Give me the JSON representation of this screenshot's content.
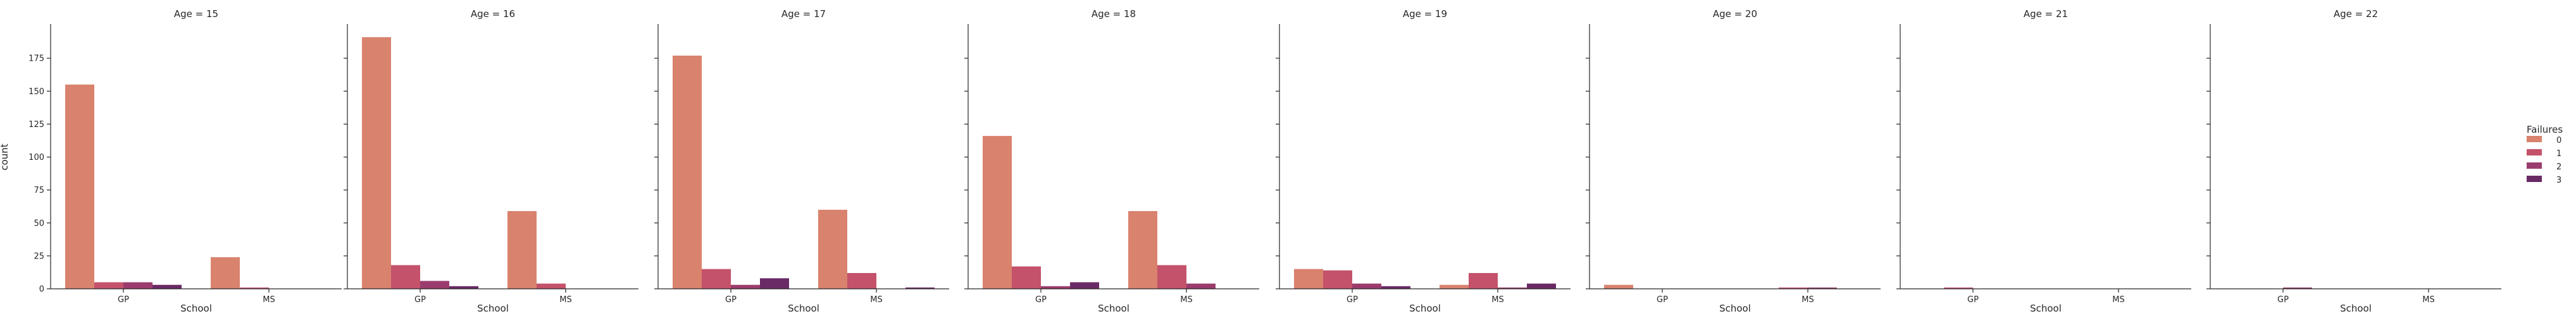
{
  "chart_data": {
    "type": "bar",
    "facet_label": "Age",
    "panel_titles": [
      "Age = 15",
      "Age = 16",
      "Age = 17",
      "Age = 18",
      "Age = 19",
      "Age = 20",
      "Age = 21",
      "Age = 22"
    ],
    "categories": [
      "GP",
      "MS"
    ],
    "xlabel": "School",
    "ylabel": "count",
    "ylim": [
      0,
      200
    ],
    "yticks": [
      0,
      25,
      50,
      75,
      100,
      125,
      150,
      175
    ],
    "grid": false,
    "legend": {
      "title": "Failures",
      "placement": "right",
      "entries": [
        "0",
        "1",
        "2",
        "3"
      ]
    },
    "colors": [
      "#d9826e",
      "#c4526a",
      "#9b3c6e",
      "#6a2a65"
    ],
    "panels": [
      {
        "title": "Age = 15",
        "series": [
          {
            "name": "0",
            "values": [
              155,
              24
            ]
          },
          {
            "name": "1",
            "values": [
              5,
              1
            ]
          },
          {
            "name": "2",
            "values": [
              5,
              0
            ]
          },
          {
            "name": "3",
            "values": [
              3,
              0
            ]
          }
        ]
      },
      {
        "title": "Age = 16",
        "series": [
          {
            "name": "0",
            "values": [
              191,
              59
            ]
          },
          {
            "name": "1",
            "values": [
              18,
              4
            ]
          },
          {
            "name": "2",
            "values": [
              6,
              0
            ]
          },
          {
            "name": "3",
            "values": [
              2,
              0
            ]
          }
        ]
      },
      {
        "title": "Age = 17",
        "series": [
          {
            "name": "0",
            "values": [
              177,
              60
            ]
          },
          {
            "name": "1",
            "values": [
              15,
              12
            ]
          },
          {
            "name": "2",
            "values": [
              3,
              0
            ]
          },
          {
            "name": "3",
            "values": [
              8,
              1
            ]
          }
        ]
      },
      {
        "title": "Age = 18",
        "series": [
          {
            "name": "0",
            "values": [
              116,
              59
            ]
          },
          {
            "name": "1",
            "values": [
              17,
              18
            ]
          },
          {
            "name": "2",
            "values": [
              2,
              4
            ]
          },
          {
            "name": "3",
            "values": [
              5,
              0
            ]
          }
        ]
      },
      {
        "title": "Age = 19",
        "series": [
          {
            "name": "0",
            "values": [
              15,
              3
            ]
          },
          {
            "name": "1",
            "values": [
              14,
              12
            ]
          },
          {
            "name": "2",
            "values": [
              4,
              1
            ]
          },
          {
            "name": "3",
            "values": [
              2,
              4
            ]
          }
        ]
      },
      {
        "title": "Age = 20",
        "series": [
          {
            "name": "0",
            "values": [
              3,
              0
            ]
          },
          {
            "name": "1",
            "values": [
              0,
              1
            ]
          },
          {
            "name": "2",
            "values": [
              0,
              1
            ]
          },
          {
            "name": "3",
            "values": [
              0,
              0
            ]
          }
        ]
      },
      {
        "title": "Age = 21",
        "series": [
          {
            "name": "0",
            "values": [
              0,
              0
            ]
          },
          {
            "name": "1",
            "values": [
              1,
              0
            ]
          },
          {
            "name": "2",
            "values": [
              0,
              0
            ]
          },
          {
            "name": "3",
            "values": [
              0,
              0
            ]
          }
        ]
      },
      {
        "title": "Age = 22",
        "series": [
          {
            "name": "0",
            "values": [
              0,
              0
            ]
          },
          {
            "name": "1",
            "values": [
              0,
              0
            ]
          },
          {
            "name": "2",
            "values": [
              1,
              0
            ]
          },
          {
            "name": "3",
            "values": [
              0,
              0
            ]
          }
        ]
      }
    ]
  }
}
